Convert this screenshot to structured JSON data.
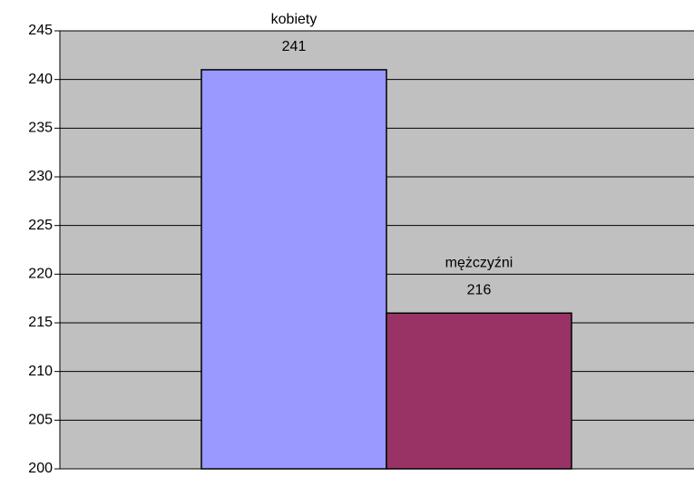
{
  "chart_data": {
    "type": "bar",
    "series": [
      {
        "name": "kobiety",
        "color": "#9999ff",
        "values": [
          241
        ]
      },
      {
        "name": "mężczyźni",
        "color": "#993366",
        "values": [
          216
        ]
      }
    ],
    "ylim": [
      200,
      245
    ],
    "yticks": [
      200,
      205,
      210,
      215,
      220,
      225,
      230,
      235,
      240,
      245
    ],
    "grid": true,
    "plot_background": "#c0c0c0"
  }
}
